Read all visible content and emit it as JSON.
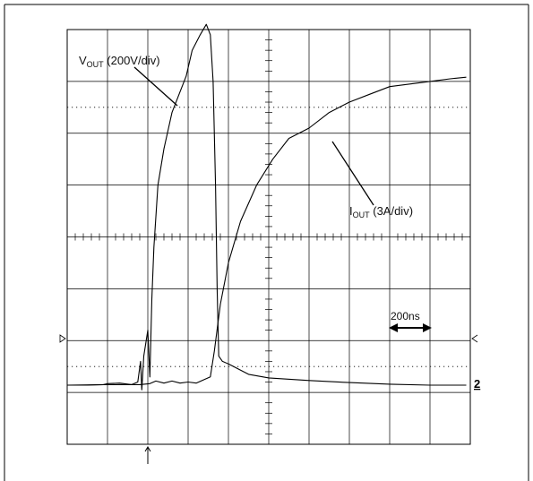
{
  "chart_data": {
    "type": "line",
    "title": "",
    "xlabel": "",
    "ylabel": "",
    "grid": true,
    "divisions": {
      "x": 10,
      "y": 8
    },
    "xlim": [
      0,
      10
    ],
    "ylim": [
      -4,
      4
    ],
    "series": [
      {
        "name": "VOUT (200V/div)",
        "points": [
          [
            0,
            -2.86
          ],
          [
            0.5,
            -2.86
          ],
          [
            0.9,
            -2.85
          ],
          [
            1.0,
            -2.83
          ],
          [
            1.3,
            -2.82
          ],
          [
            1.6,
            -2.85
          ],
          [
            1.75,
            -2.8
          ],
          [
            1.82,
            -2.4
          ],
          [
            1.85,
            -2.95
          ],
          [
            1.9,
            -2.3
          ],
          [
            2.0,
            -1.8
          ],
          [
            2.05,
            -2.7
          ],
          [
            2.1,
            -1.2
          ],
          [
            2.15,
            -0.2
          ],
          [
            2.25,
            1.0
          ],
          [
            2.4,
            1.7
          ],
          [
            2.6,
            2.4
          ],
          [
            2.8,
            2.8
          ],
          [
            2.95,
            3.1
          ],
          [
            3.1,
            3.6
          ],
          [
            3.3,
            3.9
          ],
          [
            3.45,
            4.1
          ],
          [
            3.55,
            3.9
          ],
          [
            3.62,
            3.0
          ],
          [
            3.68,
            1.0
          ],
          [
            3.72,
            -1.0
          ],
          [
            3.76,
            -2.3
          ],
          [
            3.85,
            -2.4
          ],
          [
            4.0,
            -2.45
          ],
          [
            4.5,
            -2.65
          ],
          [
            5.0,
            -2.72
          ],
          [
            6.0,
            -2.77
          ],
          [
            7.0,
            -2.81
          ],
          [
            8.0,
            -2.84
          ],
          [
            9.0,
            -2.86
          ],
          [
            9.9,
            -2.86
          ]
        ]
      },
      {
        "name": "IOUT (3A/div)",
        "points": [
          [
            0,
            -2.86
          ],
          [
            0.9,
            -2.85
          ],
          [
            1.6,
            -2.85
          ],
          [
            1.8,
            -2.85
          ],
          [
            2.05,
            -2.83
          ],
          [
            2.2,
            -2.78
          ],
          [
            2.4,
            -2.82
          ],
          [
            2.6,
            -2.78
          ],
          [
            2.8,
            -2.82
          ],
          [
            3.0,
            -2.8
          ],
          [
            3.2,
            -2.82
          ],
          [
            3.4,
            -2.75
          ],
          [
            3.55,
            -2.7
          ],
          [
            3.65,
            -2.2
          ],
          [
            3.8,
            -1.3
          ],
          [
            4.0,
            -0.5
          ],
          [
            4.3,
            0.3
          ],
          [
            4.7,
            1.0
          ],
          [
            5.1,
            1.5
          ],
          [
            5.5,
            1.9
          ],
          [
            6.0,
            2.1
          ],
          [
            6.5,
            2.4
          ],
          [
            7.0,
            2.6
          ],
          [
            7.5,
            2.75
          ],
          [
            8.0,
            2.9
          ],
          [
            8.5,
            2.95
          ],
          [
            9.0,
            3.0
          ],
          [
            9.5,
            3.05
          ],
          [
            9.9,
            3.08
          ]
        ]
      }
    ],
    "annotations": {
      "vout": {
        "text": "V",
        "sub": "OUT",
        "rest": " (200V/div)"
      },
      "iout": {
        "text": "I",
        "sub": "OUT",
        "rest": " (3A/div)"
      },
      "timebase": "200ns",
      "channel_marker": "2"
    }
  }
}
